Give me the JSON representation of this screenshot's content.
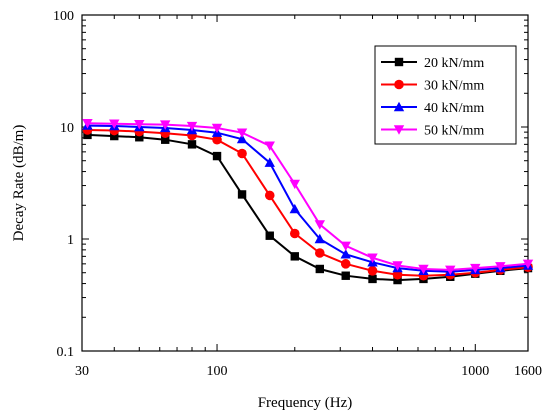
{
  "chart_data": {
    "type": "line",
    "xlabel": "Frequency (Hz)",
    "ylabel": "Decay Rate (dB/m)",
    "xscale": "log",
    "yscale": "log",
    "xlim": [
      30,
      1600
    ],
    "ylim": [
      0.1,
      100
    ],
    "xticks": [
      30,
      100,
      1000,
      1600
    ],
    "xtick_labels": [
      "30",
      "100",
      "1000",
      "1600"
    ],
    "yticks": [
      0.1,
      1,
      10,
      100
    ],
    "ytick_labels": [
      "0.1",
      "1",
      "10",
      "100"
    ],
    "grid": false,
    "legend_position": "top-right",
    "x": [
      31.5,
      40,
      50,
      63,
      80,
      100,
      125,
      160,
      200,
      250,
      315,
      400,
      500,
      630,
      800,
      1000,
      1250,
      1600
    ],
    "series": [
      {
        "name": "20 kN/mm",
        "color": "#000000",
        "marker": "square",
        "values": [
          8.5,
          8.3,
          8.1,
          7.7,
          7.0,
          5.5,
          2.5,
          1.07,
          0.7,
          0.54,
          0.47,
          0.44,
          0.43,
          0.44,
          0.46,
          0.49,
          0.52,
          0.55
        ]
      },
      {
        "name": "30 kN/mm",
        "color": "#ff0000",
        "marker": "circle",
        "values": [
          9.4,
          9.3,
          9.1,
          8.8,
          8.4,
          7.7,
          5.8,
          2.45,
          1.12,
          0.75,
          0.6,
          0.52,
          0.48,
          0.47,
          0.48,
          0.5,
          0.53,
          0.56
        ]
      },
      {
        "name": "40 kN/mm",
        "color": "#0000ff",
        "marker": "triangle-up",
        "values": [
          10.3,
          10.2,
          10.0,
          9.8,
          9.4,
          8.9,
          7.8,
          4.8,
          1.85,
          1.0,
          0.73,
          0.62,
          0.55,
          0.52,
          0.51,
          0.53,
          0.55,
          0.58
        ]
      },
      {
        "name": "50 kN/mm",
        "color": "#ff00ff",
        "marker": "triangle-down",
        "values": [
          10.8,
          10.7,
          10.6,
          10.5,
          10.2,
          9.8,
          8.9,
          6.8,
          3.1,
          1.35,
          0.87,
          0.68,
          0.58,
          0.54,
          0.53,
          0.55,
          0.57,
          0.6
        ]
      }
    ]
  }
}
